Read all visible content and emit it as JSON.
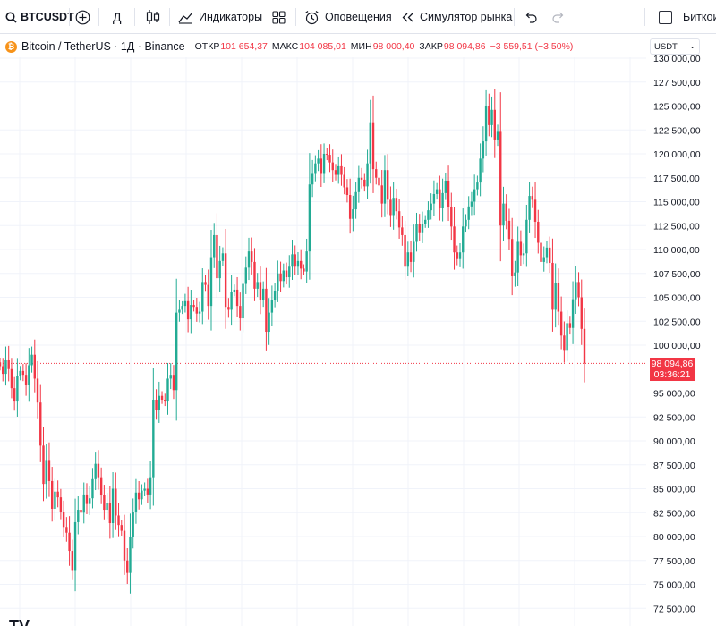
{
  "toolbar": {
    "symbol": "BTCUSDT",
    "interval": "Д",
    "indicators_label": "Индикаторы",
    "alerts_label": "Оповещения",
    "replay_label": "Симулятор рынка",
    "checkbox_label": "Биткоин"
  },
  "legend": {
    "title": "Bitcoin / TetherUS · 1Д · Binance",
    "open_key": "ОТКР",
    "open_value": "101 654,37",
    "high_key": "МАКС",
    "high_value": "104 085,01",
    "low_key": "МИН",
    "low_value": "98 000,40",
    "close_key": "ЗАКР",
    "close_value": "98 094,86",
    "change": "−3 559,51 (−3,50%)"
  },
  "currency": "USDT",
  "price_tag": {
    "price": "98 094,86",
    "countdown": "03:36:21"
  },
  "logo": "TV",
  "colors": {
    "up": "#22ab94",
    "down": "#f23645",
    "grid": "#f0f3fa",
    "price_line": "#f23645"
  },
  "icons": {
    "search": "search-icon",
    "compare": "add-symbol-icon",
    "chart_type": "candles-icon",
    "indicators": "indicators-icon",
    "layouts": "layout-grid-icon",
    "alerts": "alarm-icon",
    "replay": "rewind-icon",
    "undo": "undo-icon",
    "redo": "redo-icon"
  },
  "chart_data": {
    "type": "candlestick",
    "y_axis_ticks": [
      "130 000,00",
      "127 500,00",
      "125 000,00",
      "122 500,00",
      "120 000,00",
      "117 500,00",
      "115 000,00",
      "112 500,00",
      "110 000,00",
      "107 500,00",
      "105 000,00",
      "102 500,00",
      "100 000,00",
      "95 000,00",
      "92 500,00",
      "90 000,00",
      "87 500,00",
      "85 000,00",
      "82 500,00",
      "80 000,00",
      "77 500,00",
      "75 000,00",
      "72 500,00"
    ],
    "y_tick_values": [
      130000,
      127500,
      125000,
      122500,
      120000,
      117500,
      115000,
      112500,
      110000,
      107500,
      105000,
      102500,
      100000,
      95000,
      92500,
      90000,
      87500,
      85000,
      82500,
      80000,
      77500,
      75000,
      72500
    ],
    "ylim": [
      72500,
      130000
    ],
    "grid": true,
    "last_price": 98094.86,
    "closes": [
      97800,
      97000,
      98500,
      97500,
      95500,
      94200,
      96800,
      97300,
      96900,
      95800,
      97900,
      99000,
      96500,
      94000,
      89500,
      85500,
      88000,
      85800,
      82900,
      84700,
      84100,
      82600,
      81000,
      80400,
      78500,
      76500,
      81500,
      82800,
      82500,
      84400,
      83400,
      84000,
      86000,
      87600,
      86200,
      84300,
      82800,
      83500,
      81400,
      85000,
      82200,
      81200,
      80600,
      77500,
      76200,
      80000,
      82600,
      84600,
      83900,
      84800,
      85000,
      84400,
      86200,
      94300,
      93200,
      94700,
      94300,
      94200,
      96500,
      96900,
      95300,
      103400,
      103700,
      104100,
      104600,
      102700,
      104200,
      104000,
      103300,
      103500,
      106600,
      106300,
      104100,
      109200,
      111500,
      107000,
      108800,
      109600,
      104000,
      103700,
      105600,
      105800,
      104100,
      102800,
      106400,
      108100,
      109800,
      108700,
      105900,
      106600,
      104700,
      105900,
      101400,
      103400,
      104700,
      105700,
      107500,
      106700,
      107800,
      107100,
      108200,
      109500,
      108200,
      108800,
      108000,
      107700,
      109800,
      116800,
      117900,
      119000,
      119500,
      117900,
      120000,
      119900,
      119100,
      118300,
      117800,
      118700,
      117800,
      116500,
      115700,
      113200,
      114200,
      116000,
      117500,
      117300,
      116600,
      119000,
      123300,
      118400,
      117500,
      116700,
      114800,
      118300,
      115200,
      113600,
      115400,
      114000,
      112300,
      111500,
      108200,
      109700,
      108700,
      110800,
      112700,
      111800,
      112700,
      113100,
      114100,
      114800,
      115800,
      116300,
      114300,
      115900,
      117200,
      114400,
      112400,
      109700,
      109000,
      109700,
      112400,
      113100,
      114500,
      115000,
      116300,
      117000,
      119500,
      121300,
      125000,
      123000,
      124600,
      121500,
      122300,
      112500,
      114800,
      113000,
      111100,
      107200,
      107600,
      110800,
      109400,
      109600,
      113100,
      115600,
      115200,
      112900,
      110700,
      108700,
      109200,
      110200,
      108600,
      103700,
      106500,
      103500,
      101000,
      99500,
      102300,
      101800,
      104800,
      106600,
      105000,
      101700,
      98100
    ]
  }
}
